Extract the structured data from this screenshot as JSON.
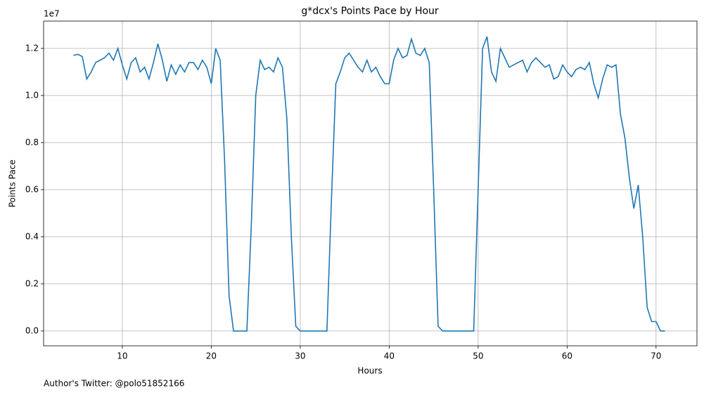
{
  "chart_data": {
    "type": "line",
    "title": "g*dcx's Points Pace by Hour",
    "x_label": "Hours",
    "y_label": "Points Pace",
    "y_offset_label": "1e7",
    "footnote": "Author's Twitter: @polo51852166",
    "grid": true,
    "xlim": [
      1.15,
      74.6
    ],
    "ylim": [
      -0.063,
      1.316
    ],
    "xticks": [
      10,
      20,
      30,
      40,
      50,
      60,
      70
    ],
    "yticks": [
      {
        "value": 0,
        "label": "0.0"
      },
      0.2,
      0.4,
      0.6,
      0.8,
      {
        "value": 1,
        "label": "1.0"
      },
      1.2
    ],
    "x": [
      4.5,
      5,
      5.5,
      6,
      6.5,
      7,
      7.5,
      8,
      8.5,
      9,
      9.5,
      10,
      10.5,
      11,
      11.5,
      12,
      12.5,
      13,
      13.5,
      14,
      14.5,
      15,
      15.5,
      16,
      16.5,
      17,
      17.5,
      18,
      18.5,
      19,
      19.5,
      20,
      20.5,
      21,
      21.5,
      22,
      22.5,
      23,
      23.5,
      24,
      24.5,
      25,
      25.5,
      26,
      26.5,
      27,
      27.5,
      28,
      28.5,
      29,
      29.5,
      30,
      30.5,
      31,
      31.5,
      32,
      32.5,
      33,
      33.5,
      34,
      34.5,
      35,
      35.5,
      36,
      36.5,
      37,
      37.5,
      38,
      38.5,
      39,
      39.5,
      40,
      40.5,
      41,
      41.5,
      42,
      42.5,
      43,
      43.5,
      44,
      44.5,
      45,
      45.5,
      46,
      46.5,
      47,
      47.5,
      48,
      48.5,
      49,
      49.5,
      50,
      50.5,
      51,
      51.5,
      52,
      52.5,
      53,
      53.5,
      54,
      54.5,
      55,
      55.5,
      56,
      56.5,
      57,
      57.5,
      58,
      58.5,
      59,
      59.5,
      60,
      60.5,
      61,
      61.5,
      62,
      62.5,
      63,
      63.5,
      64,
      64.5,
      65,
      65.5,
      66,
      66.5,
      67,
      67.5,
      68,
      68.5,
      69,
      69.5,
      70,
      70.5,
      71
    ],
    "series": [
      {
        "name": "Points Pace",
        "color": "#1f77b4",
        "values": [
          1.17,
          1.175,
          1.165,
          1.07,
          1.1,
          1.14,
          1.15,
          1.16,
          1.18,
          1.15,
          1.2,
          1.13,
          1.07,
          1.14,
          1.16,
          1.1,
          1.12,
          1.07,
          1.14,
          1.22,
          1.15,
          1.06,
          1.13,
          1.09,
          1.13,
          1.1,
          1.14,
          1.14,
          1.11,
          1.15,
          1.12,
          1.05,
          1.2,
          1.15,
          0.72,
          0.15,
          0,
          0,
          0,
          0,
          0.45,
          1.0,
          1.15,
          1.11,
          1.12,
          1.1,
          1.16,
          1.12,
          0.9,
          0.4,
          0.02,
          0,
          0,
          0,
          0,
          0,
          0,
          0,
          0.55,
          1.05,
          1.1,
          1.16,
          1.18,
          1.15,
          1.12,
          1.1,
          1.15,
          1.1,
          1.12,
          1.08,
          1.05,
          1.05,
          1.15,
          1.2,
          1.16,
          1.17,
          1.24,
          1.18,
          1.17,
          1.2,
          1.14,
          0.6,
          0.02,
          0,
          0,
          0,
          0,
          0,
          0,
          0,
          0,
          0.6,
          1.2,
          1.25,
          1.1,
          1.06,
          1.2,
          1.16,
          1.12,
          1.13,
          1.14,
          1.15,
          1.1,
          1.14,
          1.16,
          1.14,
          1.12,
          1.13,
          1.07,
          1.08,
          1.13,
          1.1,
          1.08,
          1.11,
          1.12,
          1.11,
          1.14,
          1.05,
          0.99,
          1.07,
          1.13,
          1.12,
          1.13,
          0.92,
          0.82,
          0.65,
          0.52,
          0.62,
          0.4,
          0.1,
          0.04,
          0.04,
          0,
          0
        ]
      }
    ]
  }
}
